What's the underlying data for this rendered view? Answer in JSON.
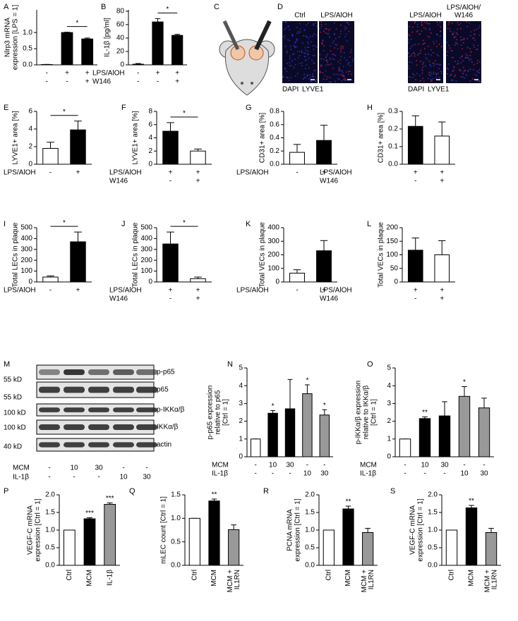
{
  "chart_data": [
    {
      "type": "bar",
      "panel": "A",
      "ylabel": [
        "Nlrp3 mRNA",
        "expression [LPS = 1]"
      ],
      "ylim": [
        0,
        1.7
      ],
      "yticks": [
        {
          "value": 0,
          "label": "0.0"
        },
        0.5,
        {
          "value": 1,
          "label": "1.0"
        }
      ],
      "values": [
        0.01,
        1.0,
        0.8
      ],
      "errors": [
        0.005,
        0.01,
        0.03
      ],
      "colors": [
        "#000000",
        "#000000",
        "#000000"
      ],
      "conditions": [
        {
          "values": [
            "-",
            "+",
            "+"
          ]
        },
        {
          "values": [
            "-",
            "-",
            "+"
          ]
        }
      ],
      "bracket": {
        "label": "*",
        "between": [
          1,
          2
        ]
      }
    },
    {
      "type": "bar",
      "panel": "B",
      "ylabel": [
        "IL-1β [pg/ml]"
      ],
      "ylim": [
        0,
        82
      ],
      "yticks": [
        0,
        20,
        40,
        60,
        80
      ],
      "values": [
        1,
        64,
        44
      ],
      "errors": [
        1,
        5,
        1.5
      ],
      "colors": [
        "#000000",
        "#000000",
        "#000000"
      ],
      "conditions": [
        {
          "name": "LPS/AlOH",
          "values": [
            "-",
            "+",
            "+"
          ]
        },
        {
          "name": "W146",
          "values": [
            "-",
            "-",
            "+"
          ]
        }
      ],
      "bracket": {
        "label": "*",
        "between": [
          1,
          2
        ]
      }
    },
    {
      "type": "bar",
      "panel": "E",
      "ylabel": [
        "LYVE1+ area [%]"
      ],
      "ylim": [
        0,
        6
      ],
      "yticks": [
        0,
        2,
        4,
        6
      ],
      "values": [
        1.8,
        3.9
      ],
      "errors": [
        0.7,
        1.0
      ],
      "colors": [
        "#ffffff",
        "#000000"
      ],
      "conditions": [
        {
          "name": "LPS/AlOH",
          "values": [
            "-",
            "+"
          ]
        }
      ],
      "bracket": {
        "label": "*",
        "between": [
          0,
          1
        ]
      }
    },
    {
      "type": "bar",
      "panel": "F",
      "ylabel": [
        "LYVE1+ area [%]"
      ],
      "ylim": [
        0,
        8
      ],
      "yticks": [
        0,
        2,
        4,
        6,
        8
      ],
      "values": [
        5.0,
        2.0
      ],
      "errors": [
        1.3,
        0.3
      ],
      "colors": [
        "#000000",
        "#ffffff"
      ],
      "conditions": [
        {
          "name": "LPS/AlOH",
          "values": [
            "+",
            "+"
          ]
        },
        {
          "name": "W146",
          "values": [
            "-",
            "+"
          ]
        }
      ],
      "bracket": {
        "label": "*",
        "between": [
          0,
          1
        ]
      }
    },
    {
      "type": "bar",
      "panel": "G",
      "ylabel": [
        "CD31+ area [%]"
      ],
      "ylim": [
        0,
        0.8
      ],
      "yticks": [
        {
          "value": 0,
          "label": "0.0"
        },
        0.2,
        0.4,
        0.6,
        0.8
      ],
      "values": [
        0.18,
        0.36
      ],
      "errors": [
        0.12,
        0.23
      ],
      "colors": [
        "#ffffff",
        "#000000"
      ],
      "conditions": [
        {
          "name": "LPS/AlOH",
          "values": [
            "-",
            "+"
          ]
        }
      ]
    },
    {
      "type": "bar",
      "panel": "H",
      "ylabel": [
        "CD31+ area [%]"
      ],
      "ylim": [
        0,
        0.3
      ],
      "yticks": [
        {
          "value": 0,
          "label": "0.0"
        },
        0.1,
        0.2,
        0.3
      ],
      "values": [
        0.215,
        0.16
      ],
      "errors": [
        0.06,
        0.08
      ],
      "colors": [
        "#000000",
        "#ffffff"
      ],
      "conditions": [
        {
          "name": "LPS/AlOH",
          "values": [
            "+",
            "+"
          ]
        },
        {
          "name": "W146",
          "values": [
            "-",
            "+"
          ]
        }
      ]
    },
    {
      "type": "bar",
      "panel": "I",
      "ylabel": [
        "Total LECs in plaque"
      ],
      "ylim": [
        0,
        500
      ],
      "yticks": [
        0,
        100,
        200,
        300,
        400,
        500
      ],
      "values": [
        45,
        370
      ],
      "errors": [
        10,
        90
      ],
      "colors": [
        "#ffffff",
        "#000000"
      ],
      "conditions": [
        {
          "name": "LPS/AlOH",
          "values": [
            "-",
            "+"
          ]
        }
      ],
      "bracket": {
        "label": "*",
        "between": [
          0,
          1
        ]
      }
    },
    {
      "type": "bar",
      "panel": "J",
      "ylabel": [
        "Total LECs in plaque"
      ],
      "ylim": [
        0,
        500
      ],
      "yticks": [
        0,
        100,
        200,
        300,
        400,
        500
      ],
      "values": [
        350,
        30
      ],
      "errors": [
        110,
        15
      ],
      "colors": [
        "#000000",
        "#ffffff"
      ],
      "conditions": [
        {
          "name": "LPS/AlOH",
          "values": [
            "+",
            "+"
          ]
        },
        {
          "name": "W146",
          "values": [
            "-",
            "+"
          ]
        }
      ],
      "bracket": {
        "label": "*",
        "between": [
          0,
          1
        ]
      }
    },
    {
      "type": "bar",
      "panel": "K",
      "ylabel": [
        "Total VECs in plaque"
      ],
      "ylim": [
        0,
        400
      ],
      "yticks": [
        0,
        100,
        200,
        300,
        400
      ],
      "values": [
        65,
        230
      ],
      "errors": [
        25,
        75
      ],
      "colors": [
        "#ffffff",
        "#000000"
      ],
      "conditions": [
        {
          "name": "LPS/AlOH",
          "values": [
            "-",
            "+"
          ]
        }
      ]
    },
    {
      "type": "bar",
      "panel": "L",
      "ylabel": [
        "Total VECs in plaque"
      ],
      "ylim": [
        0,
        200
      ],
      "yticks": [
        0,
        50,
        100,
        150,
        200
      ],
      "values": [
        117,
        100
      ],
      "errors": [
        45,
        52
      ],
      "colors": [
        "#000000",
        "#ffffff"
      ],
      "conditions": [
        {
          "name": "LPS/AlOH",
          "values": [
            "+",
            "+"
          ]
        },
        {
          "name": "W146",
          "values": [
            "-",
            "+"
          ]
        }
      ]
    },
    {
      "type": "bar",
      "panel": "N",
      "ylabel": [
        "p-p65 expression",
        "relative to p65",
        "[Ctrl = 1]"
      ],
      "ylim": [
        0,
        5
      ],
      "yticks": [
        0,
        1,
        2,
        3,
        4,
        5
      ],
      "values": [
        1,
        2.45,
        2.7,
        3.55,
        2.35
      ],
      "errors": [
        0,
        0.15,
        1.65,
        0.5,
        0.3
      ],
      "colors": [
        "#ffffff",
        "#000000",
        "#000000",
        "#999999",
        "#999999"
      ],
      "significance": [
        null,
        "*",
        null,
        "*",
        "*"
      ],
      "conditions": [
        {
          "name": "MCM",
          "values": [
            "-",
            "10",
            "30",
            "-",
            "-"
          ]
        },
        {
          "name": "IL-1β",
          "values": [
            "-",
            "-",
            "-",
            "10",
            "30"
          ]
        }
      ]
    },
    {
      "type": "bar",
      "panel": "O",
      "ylabel": [
        "p-IKKα/β expression",
        "relative to IKKα/β",
        "[Ctrl = 1]"
      ],
      "ylim": [
        0,
        5
      ],
      "yticks": [
        0,
        1,
        2,
        3,
        4,
        5
      ],
      "values": [
        1,
        2.15,
        2.3,
        3.4,
        2.75
      ],
      "errors": [
        0,
        0.1,
        0.8,
        0.55,
        0.55
      ],
      "colors": [
        "#ffffff",
        "#000000",
        "#000000",
        "#999999",
        "#999999"
      ],
      "significance": [
        null,
        "**",
        null,
        "*",
        null
      ],
      "conditions": [
        {
          "name": "MCM",
          "values": [
            "-",
            "10",
            "30",
            "-",
            "-"
          ]
        },
        {
          "name": "IL-1β",
          "values": [
            "-",
            "-",
            "-",
            "10",
            "30"
          ]
        }
      ]
    },
    {
      "type": "bar",
      "panel": "P",
      "ylabel": [
        "VEGF-C mRNA",
        "expression [Ctrl = 1]"
      ],
      "ylim": [
        0,
        2
      ],
      "yticks": [
        {
          "value": 0,
          "label": "0.0"
        },
        0.5,
        {
          "value": 1,
          "label": "1.0"
        },
        1.5,
        {
          "value": 2,
          "label": "2.0"
        }
      ],
      "categories": [
        [
          "Ctrl"
        ],
        [
          "MCM"
        ],
        [
          "IL-1β"
        ]
      ],
      "values": [
        1.0,
        1.32,
        1.73
      ],
      "errors": [
        0,
        0.03,
        0.04
      ],
      "colors": [
        "#ffffff",
        "#000000",
        "#999999"
      ],
      "significance": [
        null,
        "***",
        "***"
      ]
    },
    {
      "type": "bar",
      "panel": "Q",
      "ylabel": [
        "mLEC count [Ctrl = 1]"
      ],
      "ylim": [
        0,
        1.5
      ],
      "yticks": [
        {
          "value": 0,
          "label": "0.0"
        },
        0.5,
        {
          "value": 1,
          "label": "1.0"
        },
        1.5
      ],
      "categories": [
        [
          "Ctrl"
        ],
        [
          "MCM"
        ],
        [
          "MCM +",
          "IL1RN"
        ]
      ],
      "values": [
        1.0,
        1.37,
        0.76
      ],
      "errors": [
        0,
        0.04,
        0.1
      ],
      "colors": [
        "#ffffff",
        "#000000",
        "#999999"
      ],
      "significance": [
        null,
        "**",
        null
      ]
    },
    {
      "type": "bar",
      "panel": "R",
      "ylabel": [
        "PCNA mRNA",
        "expression [Ctrl = 1]"
      ],
      "ylim": [
        0,
        2
      ],
      "yticks": [
        {
          "value": 0,
          "label": "0.0"
        },
        0.5,
        {
          "value": 1,
          "label": "1.0"
        },
        1.5,
        {
          "value": 2,
          "label": "2.0"
        }
      ],
      "categories": [
        [
          "Ctrl"
        ],
        [
          "MCM"
        ],
        [
          "MCM +",
          "IL1RN"
        ]
      ],
      "values": [
        1.0,
        1.6,
        0.93
      ],
      "errors": [
        0,
        0.08,
        0.12
      ],
      "colors": [
        "#ffffff",
        "#000000",
        "#999999"
      ],
      "significance": [
        null,
        "**",
        null
      ]
    },
    {
      "type": "bar",
      "panel": "S",
      "ylabel": [
        "VEGF-C mRNA",
        "expression [Ctrl = 1]"
      ],
      "ylim": [
        0,
        2
      ],
      "yticks": [
        {
          "value": 0,
          "label": "0.0"
        },
        0.5,
        {
          "value": 1,
          "label": "1.0"
        },
        1.5,
        {
          "value": 2,
          "label": "2.0"
        }
      ],
      "categories": [
        [
          "Ctrl"
        ],
        [
          "MCM"
        ],
        [
          "MCM +",
          "IL1RN"
        ]
      ],
      "values": [
        1.0,
        1.63,
        0.93
      ],
      "errors": [
        0,
        0.07,
        0.12
      ],
      "colors": [
        "#ffffff",
        "#000000",
        "#999999"
      ],
      "significance": [
        null,
        "**",
        null
      ]
    }
  ],
  "diagram": {
    "panel": "C"
  },
  "images": {
    "panel": "D",
    "titles": [
      [
        "Ctrl"
      ],
      [
        "LPS/AlOH"
      ],
      [
        "LPS/AlOH"
      ],
      [
        "LPS/AlOH/",
        "W146"
      ]
    ],
    "stains": [
      "DAPI",
      "LYVE1"
    ]
  },
  "blot": {
    "panel": "M",
    "bands": [
      "p-p65",
      "p65",
      "p-IKKα/β",
      "IKKα/β",
      "actin"
    ],
    "markers": [
      "55 kD",
      "55 kD",
      "100 kD",
      "100 kD",
      "40 kD"
    ],
    "conditions": [
      {
        "name": "MCM",
        "values": [
          "-",
          "10",
          "30",
          "-",
          "-"
        ]
      },
      {
        "name": "IL-1β",
        "values": [
          "-",
          "-",
          "-",
          "10",
          "30"
        ]
      }
    ]
  }
}
